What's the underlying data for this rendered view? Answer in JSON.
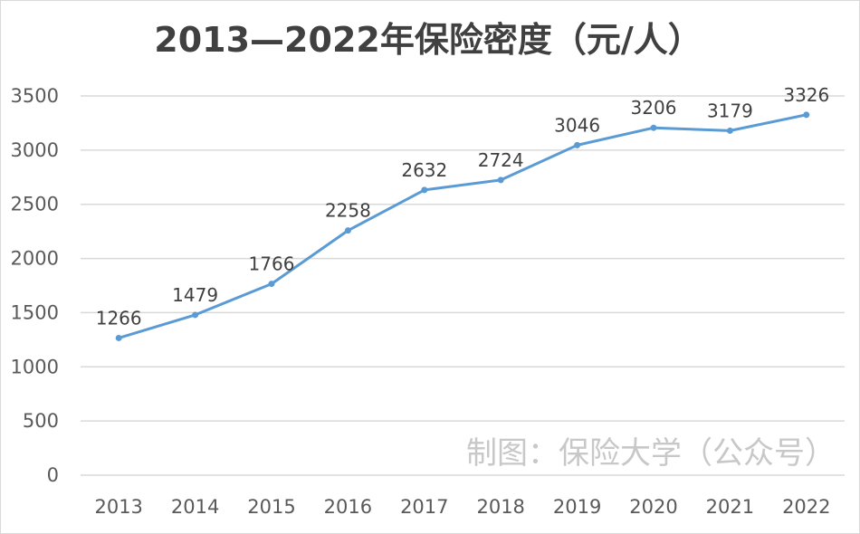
{
  "chart_data": {
    "type": "line",
    "title": "2013—2022年保险密度（元/人）",
    "categories": [
      "2013",
      "2014",
      "2015",
      "2016",
      "2017",
      "2018",
      "2019",
      "2020",
      "2021",
      "2022"
    ],
    "series": [
      {
        "name": "保险密度",
        "values": [
          1266,
          1479,
          1766,
          2258,
          2632,
          2724,
          3046,
          3206,
          3179,
          3326
        ]
      }
    ],
    "ylim": [
      0,
      3500
    ],
    "yticks": [
      0,
      500,
      1000,
      1500,
      2000,
      2500,
      3000,
      3500
    ],
    "grid": true,
    "xlabel": "",
    "ylabel": ""
  },
  "watermark": "制图：保险大学（公众号）",
  "colors": {
    "line": "#5b9bd5",
    "grid": "#d9d9d9",
    "title": "#404040",
    "tick": "#595959",
    "watermark": "#c8c8c8"
  }
}
